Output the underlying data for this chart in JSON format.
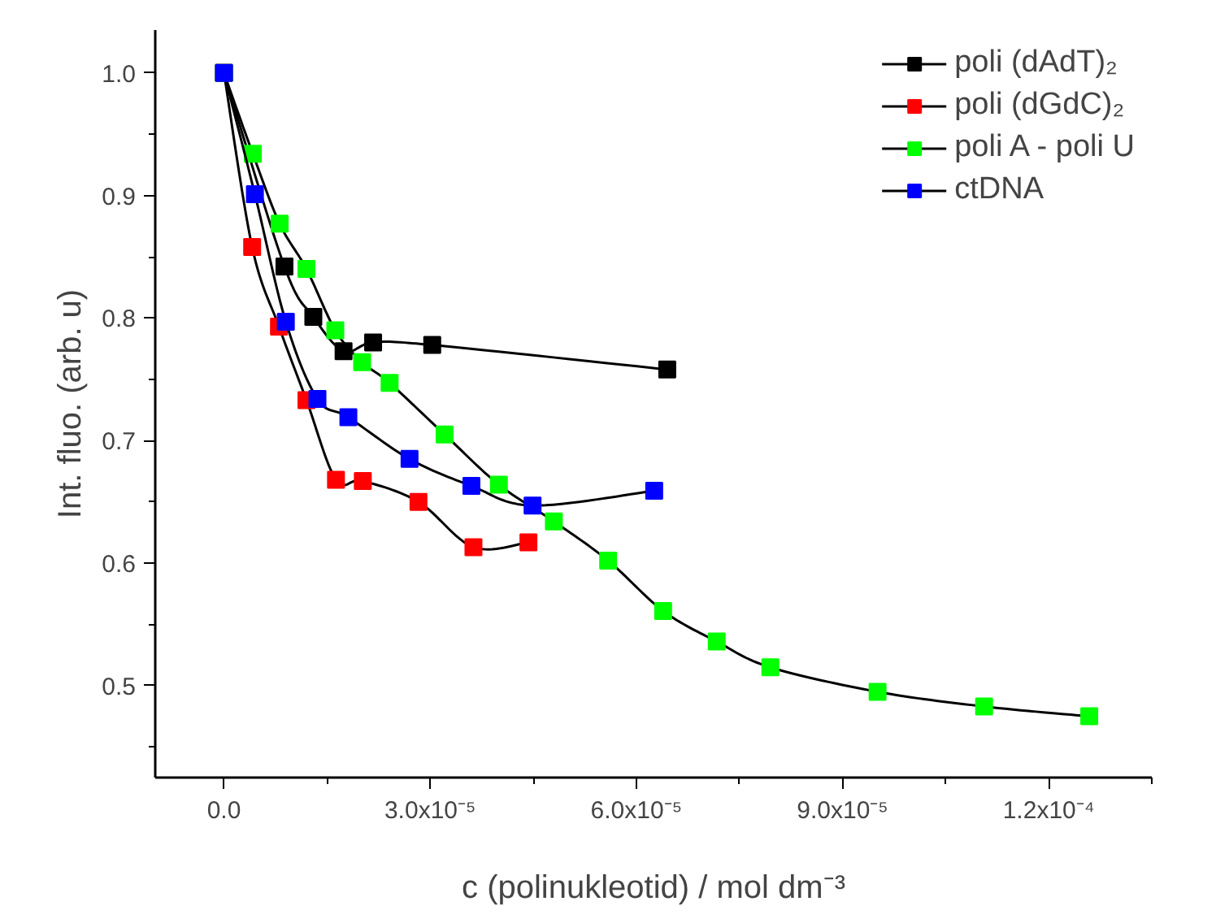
{
  "chart_data": {
    "type": "line",
    "xlabel": "c (polinukleotid) / mol dm⁻³",
    "ylabel": "Int. fluo. (arb. u)",
    "xlim": [
      -1e-05,
      0.000135
    ],
    "ylim": [
      0.425,
      1.035
    ],
    "xticks": [
      {
        "value": 0,
        "label": "0.0"
      },
      {
        "value": 3e-05,
        "label": "3.0x10⁻⁵"
      },
      {
        "value": 6e-05,
        "label": "6.0x10⁻⁵"
      },
      {
        "value": 9e-05,
        "label": "9.0x10⁻⁵"
      },
      {
        "value": 0.00012,
        "label": "1.2x10⁻⁴"
      }
    ],
    "yticks": [
      {
        "value": 0.5,
        "label": "0.5"
      },
      {
        "value": 0.6,
        "label": "0.6"
      },
      {
        "value": 0.7,
        "label": "0.7"
      },
      {
        "value": 0.8,
        "label": "0.8"
      },
      {
        "value": 0.9,
        "label": "0.9"
      },
      {
        "value": 1.0,
        "label": "1.0"
      }
    ],
    "grid": false,
    "legend": "top right",
    "marker": "square",
    "line_style": "solid",
    "series": [
      {
        "name": "poli (dAdT)₂",
        "color": "#000000",
        "x": [
          0,
          8.8e-06,
          1.3e-05,
          1.74e-05,
          2.17e-05,
          3.03e-05,
          6.45e-05
        ],
        "values": [
          1.0,
          0.842,
          0.801,
          0.773,
          0.78,
          0.778,
          0.758
        ]
      },
      {
        "name": "poli (dGdC)₂",
        "color": "#ff0000",
        "x": [
          0,
          4.1e-06,
          8e-06,
          1.2e-05,
          1.63e-05,
          2.02e-05,
          2.83e-05,
          3.63e-05,
          4.43e-05
        ],
        "values": [
          1.0,
          0.858,
          0.793,
          0.733,
          0.668,
          0.667,
          0.65,
          0.613,
          0.617
        ]
      },
      {
        "name": "poli A - poli U",
        "color": "#00ff00",
        "x": [
          0,
          4.2e-06,
          8.1e-06,
          1.2e-05,
          1.62e-05,
          2.01e-05,
          2.41e-05,
          3.21e-05,
          4e-05,
          4.8e-05,
          5.59e-05,
          6.39e-05,
          7.17e-05,
          7.95e-05,
          9.51e-05,
          0.0001106,
          0.0001259
        ],
        "values": [
          1.0,
          0.934,
          0.877,
          0.84,
          0.79,
          0.764,
          0.747,
          0.705,
          0.664,
          0.634,
          0.602,
          0.561,
          0.536,
          0.515,
          0.495,
          0.483,
          0.475
        ]
      },
      {
        "name": "ctDNA",
        "color": "#0000ff",
        "x": [
          0,
          4.5e-06,
          9e-06,
          1.36e-05,
          1.81e-05,
          2.7e-05,
          3.6e-05,
          4.49e-05,
          6.26e-05
        ],
        "values": [
          1.0,
          0.901,
          0.797,
          0.734,
          0.719,
          0.685,
          0.663,
          0.647,
          0.659
        ]
      }
    ]
  }
}
